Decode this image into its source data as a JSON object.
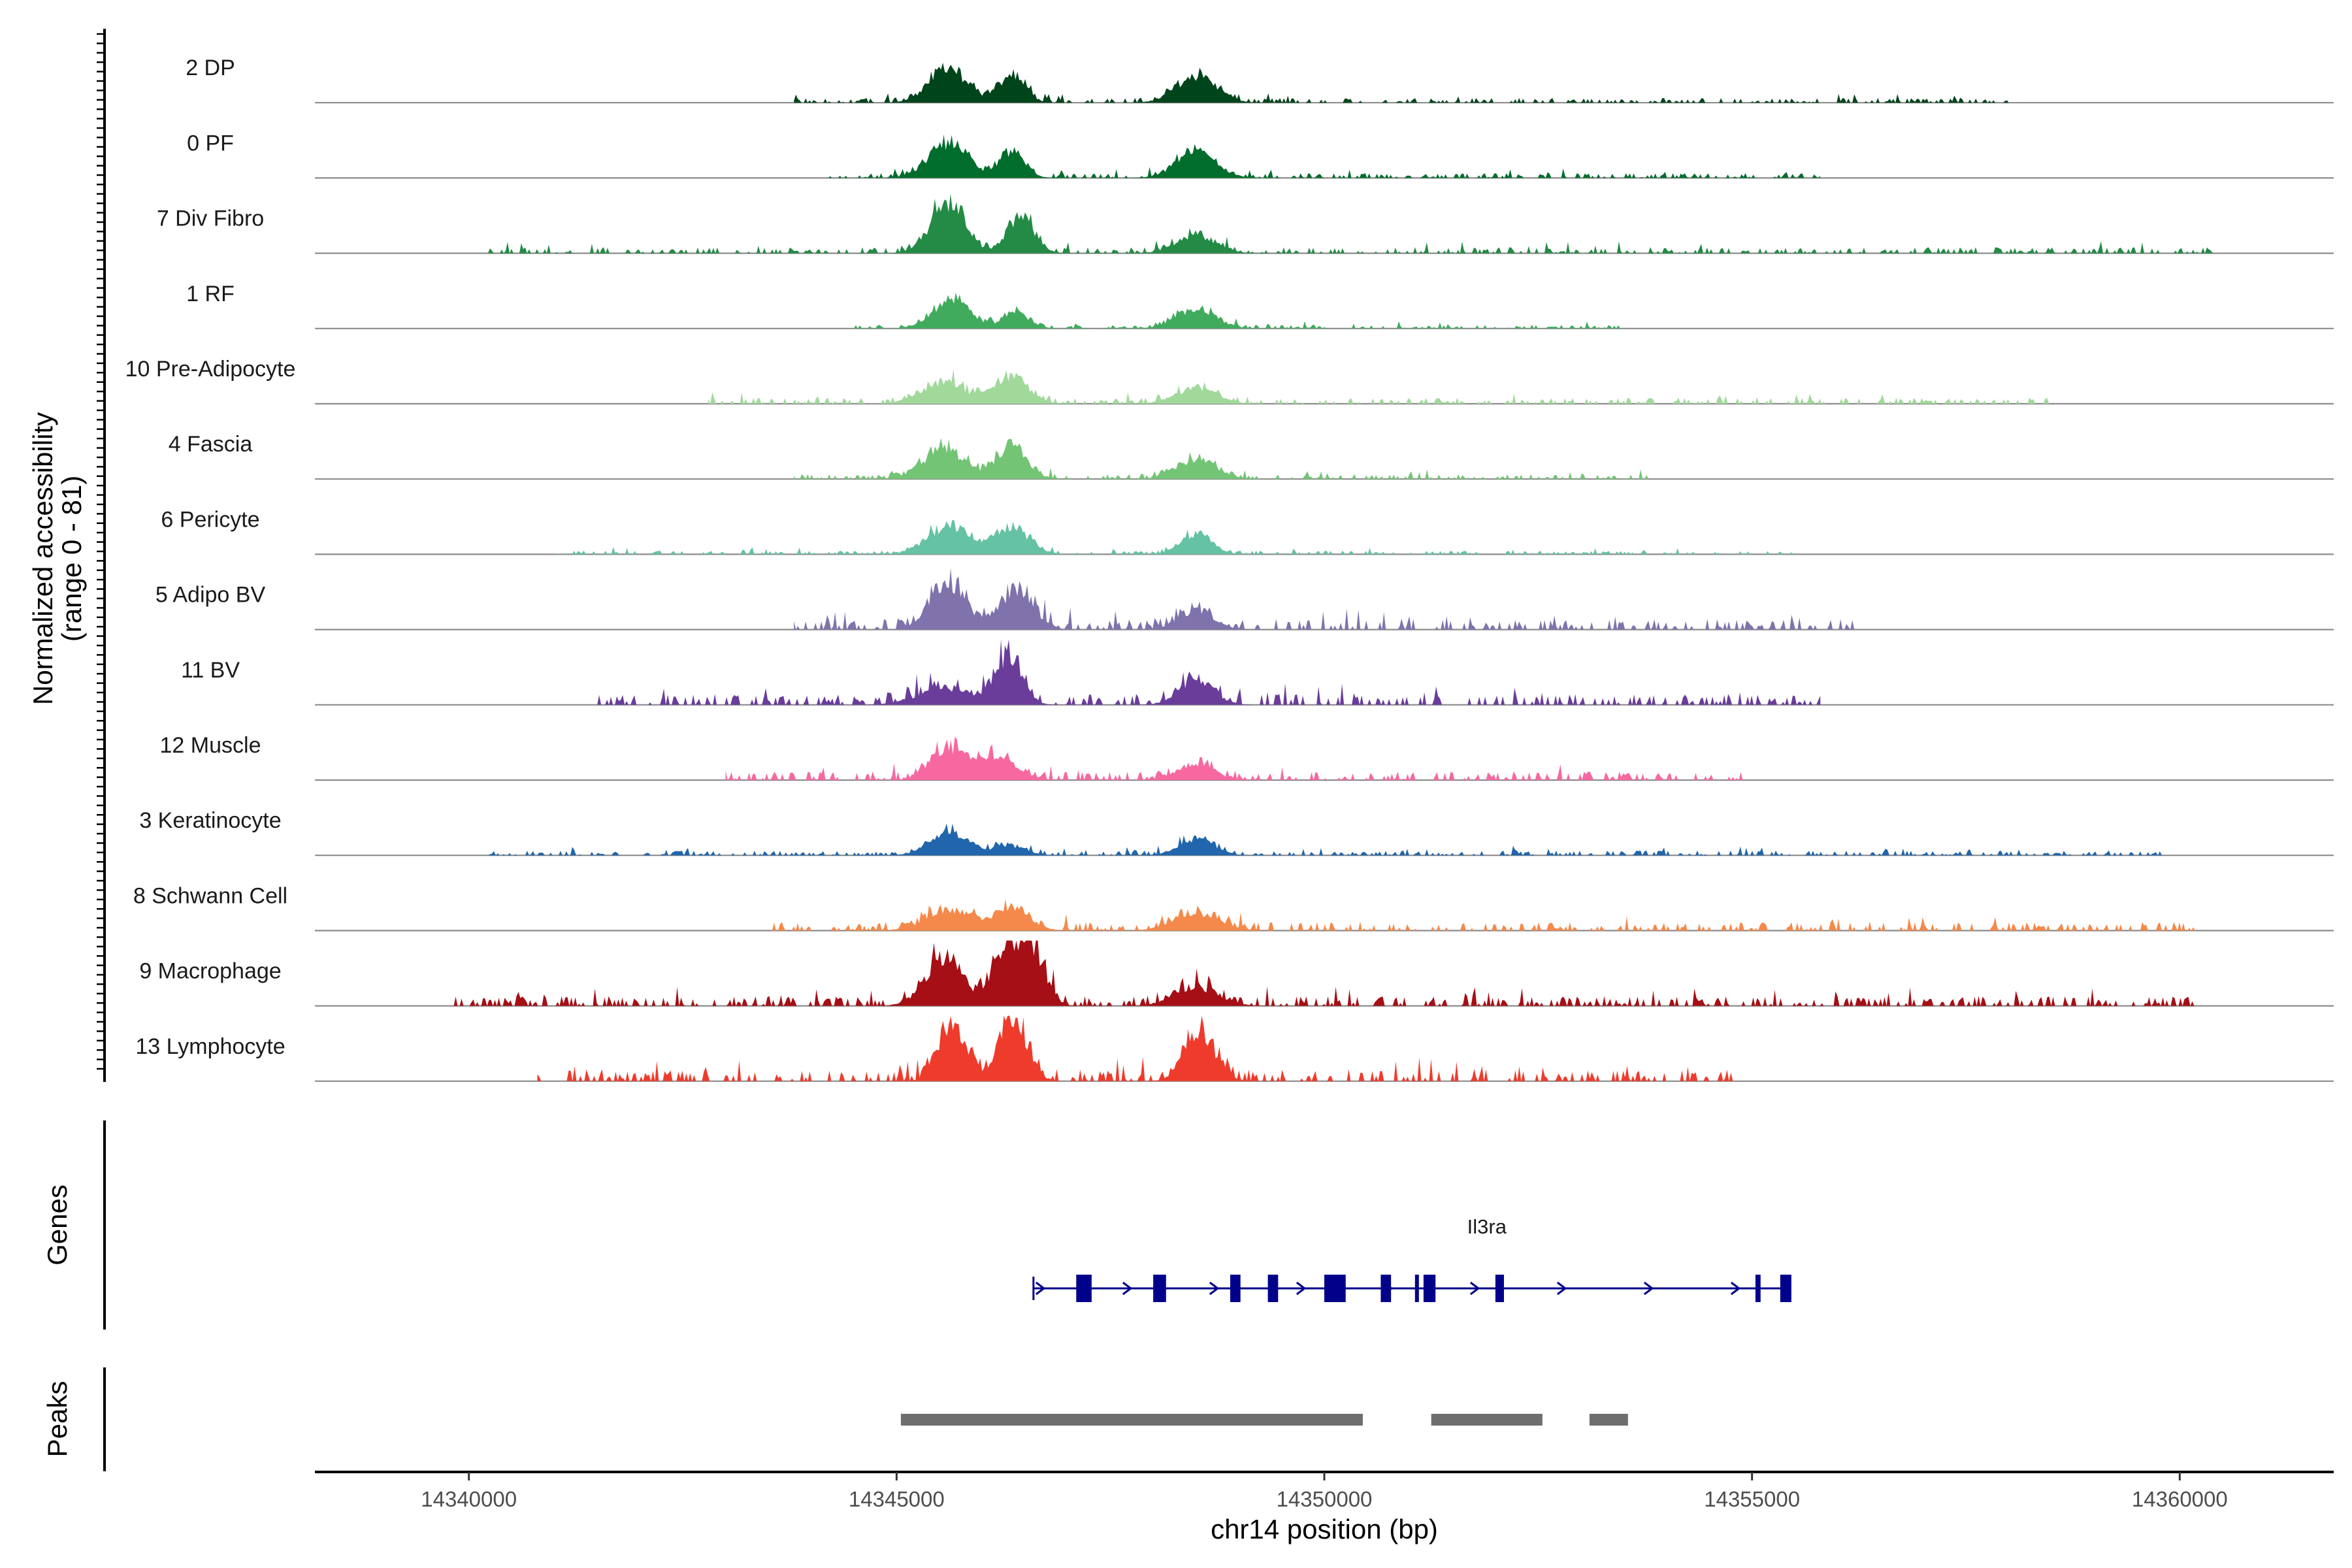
{
  "chart_data": {
    "type": "area",
    "title": "",
    "ylabel": "Normalized accessibility",
    "ylabel_range": "(range 0 - 81)",
    "ylim": [
      0,
      81
    ],
    "xlabel": "chr14 position (bp)",
    "xlim": [
      14338200,
      14361800
    ],
    "x_ticks": [
      14340000,
      14345000,
      14350000,
      14355000,
      14360000
    ],
    "x_tick_labels": [
      "14340000",
      "14345000",
      "14350000",
      "14355000",
      "14360000"
    ],
    "peak_centers": [
      14345600,
      14346300,
      14348500
    ],
    "tracks": [
      {
        "name": "2 DP",
        "color": "#00441b",
        "peaks": [
          [
            14345600,
            46,
            220
          ],
          [
            14346350,
            38,
            150
          ],
          [
            14348500,
            36,
            230
          ]
        ],
        "baseline": 4,
        "span": [
          14343800,
          14358000
        ]
      },
      {
        "name": "0 PF",
        "color": "#006d2c",
        "peaks": [
          [
            14345600,
            48,
            220
          ],
          [
            14346350,
            36,
            150
          ],
          [
            14348500,
            34,
            230
          ]
        ],
        "baseline": 4,
        "span": [
          14344200,
          14355800
        ]
      },
      {
        "name": "7 Div Fibro",
        "color": "#238b45",
        "peaks": [
          [
            14345600,
            66,
            200
          ],
          [
            14346450,
            46,
            160
          ],
          [
            14348500,
            22,
            230
          ]
        ],
        "baseline": 5,
        "span": [
          14340200,
          14360400
        ]
      },
      {
        "name": "1 RF",
        "color": "#41ab5d",
        "peaks": [
          [
            14345650,
            38,
            220
          ],
          [
            14346400,
            22,
            150
          ],
          [
            14348500,
            26,
            230
          ]
        ],
        "baseline": 3,
        "span": [
          14344500,
          14353500
        ]
      },
      {
        "name": "10 Pre-Adipocyte",
        "color": "#a1d99b",
        "peaks": [
          [
            14345550,
            28,
            260
          ],
          [
            14346350,
            34,
            200
          ],
          [
            14348500,
            20,
            240
          ]
        ],
        "baseline": 5,
        "span": [
          14342800,
          14358500
        ]
      },
      {
        "name": "4 Fascia",
        "color": "#74c476",
        "peaks": [
          [
            14345550,
            40,
            240
          ],
          [
            14346350,
            42,
            180
          ],
          [
            14348500,
            26,
            230
          ]
        ],
        "baseline": 4,
        "span": [
          14343800,
          14353800
        ]
      },
      {
        "name": "6 Pericyte",
        "color": "#66c2a4",
        "peaks": [
          [
            14345600,
            38,
            240
          ],
          [
            14346350,
            36,
            200
          ],
          [
            14348500,
            26,
            180
          ]
        ],
        "baseline": 3,
        "span": [
          14341000,
          14355600
        ]
      },
      {
        "name": "5 Adipo BV",
        "color": "#8073ac",
        "peaks": [
          [
            14345600,
            56,
            220
          ],
          [
            14346400,
            48,
            200
          ],
          [
            14348500,
            26,
            200
          ]
        ],
        "baseline": 9,
        "span": [
          14343800,
          14356200
        ]
      },
      {
        "name": "11 BV",
        "color": "#6a3d9a",
        "peaks": [
          [
            14345550,
            22,
            300
          ],
          [
            14346300,
            64,
            160
          ],
          [
            14348500,
            34,
            200
          ]
        ],
        "baseline": 9,
        "span": [
          14341500,
          14355800
        ]
      },
      {
        "name": "12 Muscle",
        "color": "#f768a1",
        "peaks": [
          [
            14345600,
            44,
            200
          ],
          [
            14346200,
            30,
            220
          ],
          [
            14348500,
            20,
            220
          ]
        ],
        "baseline": 7,
        "span": [
          14343000,
          14355000
        ]
      },
      {
        "name": "3 Keratinocyte",
        "color": "#2166ac",
        "peaks": [
          [
            14345600,
            30,
            220
          ],
          [
            14346300,
            12,
            200
          ],
          [
            14348500,
            22,
            200
          ]
        ],
        "baseline": 4,
        "span": [
          14340200,
          14359800
        ]
      },
      {
        "name": "8 Schwann Cell",
        "color": "#f4894b",
        "peaks": [
          [
            14345600,
            28,
            260
          ],
          [
            14346350,
            30,
            200
          ],
          [
            14348500,
            24,
            260
          ]
        ],
        "baseline": 7,
        "span": [
          14343500,
          14360200
        ]
      },
      {
        "name": "9 Macrophage",
        "color": "#a50f15",
        "peaks": [
          [
            14345550,
            60,
            220
          ],
          [
            14346300,
            80,
            180
          ],
          [
            14346600,
            60,
            150
          ],
          [
            14348500,
            26,
            250
          ]
        ],
        "baseline": 8,
        "span": [
          14339800,
          14360200
        ]
      },
      {
        "name": "13 Lymphocyte",
        "color": "#ef3b2c",
        "peaks": [
          [
            14345650,
            81,
            160
          ],
          [
            14346350,
            76,
            170
          ],
          [
            14348550,
            62,
            180
          ]
        ],
        "baseline": 10,
        "span": [
          14340800,
          14354800
        ]
      }
    ]
  },
  "genes": {
    "label": "Genes",
    "name": "Il3ra",
    "color": "#00008b",
    "strand": "+",
    "start": 14346600,
    "end": 14355400,
    "exons": [
      [
        14347100,
        14347280
      ],
      [
        14348000,
        14348150
      ],
      [
        14348900,
        14349020
      ],
      [
        14349340,
        14349460
      ],
      [
        14350000,
        14350250
      ],
      [
        14350660,
        14350780
      ],
      [
        14351060,
        14351090
      ],
      [
        14351160,
        14351300
      ],
      [
        14352000,
        14352100
      ],
      [
        14355040,
        14355100
      ],
      [
        14355330,
        14355460
      ]
    ]
  },
  "peaks_track": {
    "label": "Peaks",
    "color": "#6e6e6e",
    "regions": [
      [
        14345050,
        14350450
      ],
      [
        14351250,
        14352550
      ],
      [
        14353100,
        14353550
      ]
    ]
  }
}
